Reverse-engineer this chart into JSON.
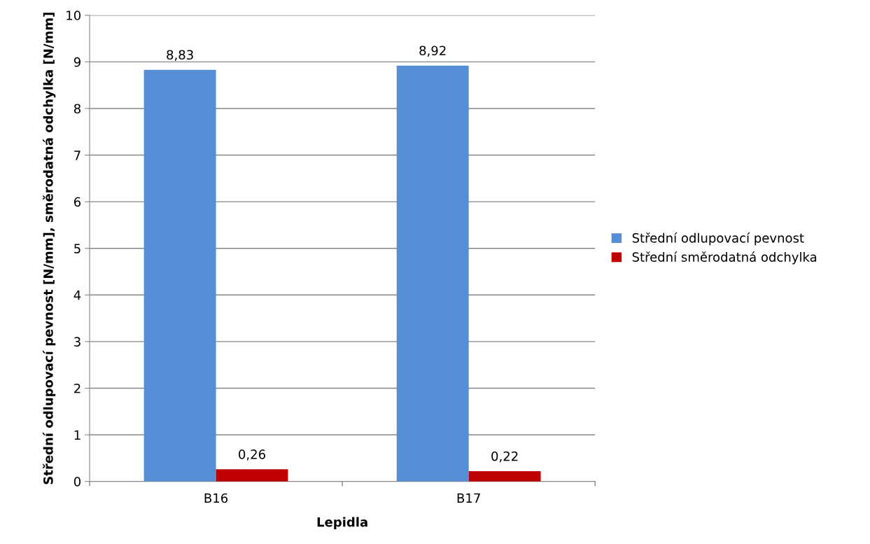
{
  "chart_data": {
    "type": "bar",
    "xlabel": "Lepidla",
    "ylabel": "Střední odlupovací pevnost [N/mm], směrodatná odchylka [N/mm]",
    "categories": [
      "B16",
      "B17"
    ],
    "series": [
      {
        "name": "Střední odlupovací pevnost",
        "color": "#558ed5",
        "values": [
          8.83,
          8.92
        ],
        "value_labels": [
          "8,83",
          "8,92"
        ]
      },
      {
        "name": "Střední směrodatná odchylka",
        "color": "#c00000",
        "values": [
          0.26,
          0.22
        ],
        "value_labels": [
          "0,26",
          "0,22"
        ]
      }
    ],
    "ylim": [
      0,
      10
    ],
    "yticks": [
      0,
      1,
      2,
      3,
      4,
      5,
      6,
      7,
      8,
      9,
      10
    ],
    "grid": "y",
    "legend": "right"
  }
}
